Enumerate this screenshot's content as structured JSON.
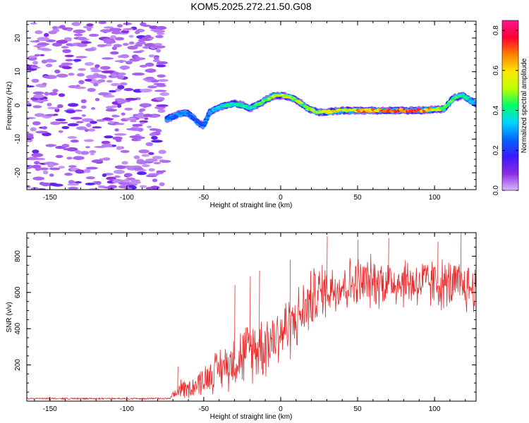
{
  "title": "KOM5.2025.272.21.50.G08",
  "colors": {
    "snr_line": "#e8292a",
    "axis": "#000000",
    "colorbar": [
      "#d9b8ff",
      "#8a2be2",
      "#3a1aff",
      "#0066ff",
      "#00d5ff",
      "#00ff66",
      "#bfff00",
      "#ffe600",
      "#ff7f00",
      "#ff0033",
      "#ff1493"
    ]
  },
  "chart_data": [
    {
      "type": "heatmap",
      "title": "KOM5.2025.272.21.50.G08",
      "xlabel": "Height of straight line (km)",
      "ylabel": "Frequency (Hz)",
      "xlim": [
        -165,
        127
      ],
      "ylim": [
        -25,
        25
      ],
      "x_ticks": [
        -150,
        -100,
        -50,
        0,
        50,
        100
      ],
      "x_tick_labels": [
        "-150",
        "-100",
        "-50",
        "0",
        "50",
        "100"
      ],
      "y_ticks": [
        -20,
        -10,
        0,
        10,
        20
      ],
      "y_tick_labels": [
        "-20",
        "-10",
        "0",
        "10",
        "20"
      ],
      "colorbar": {
        "label": "Normalized spectral amplitude",
        "range": [
          0.0,
          0.85
        ],
        "ticks": [
          0.0,
          0.2,
          0.4,
          0.6,
          0.8
        ],
        "tick_labels": [
          "0.0",
          "0.2",
          "0.4",
          "0.6",
          "0.8"
        ]
      },
      "noise_region_km": [
        -165,
        -75
      ],
      "signal_track": {
        "height_km": [
          -74,
          -62,
          -58,
          -54,
          -50,
          -46,
          -42,
          -36,
          -30,
          -24,
          -20,
          -14,
          -8,
          -4,
          0,
          6,
          12,
          18,
          24,
          30,
          40,
          50,
          60,
          70,
          80,
          90,
          100,
          106,
          112,
          118,
          127
        ],
        "freq_hz": [
          -4,
          -2,
          -3,
          -5,
          -6,
          -2,
          -1,
          0,
          0.5,
          0,
          -1,
          0.5,
          2,
          3,
          3,
          2.5,
          1,
          -1,
          -2,
          -2,
          -1.5,
          -1.5,
          -1.5,
          -1.5,
          -1.5,
          -1.5,
          -1.2,
          -1,
          2,
          3,
          0.5
        ],
        "amplitude": [
          0.25,
          0.3,
          0.25,
          0.2,
          0.25,
          0.3,
          0.35,
          0.4,
          0.4,
          0.45,
          0.4,
          0.45,
          0.5,
          0.55,
          0.6,
          0.55,
          0.5,
          0.5,
          0.55,
          0.6,
          0.6,
          0.65,
          0.7,
          0.7,
          0.75,
          0.7,
          0.6,
          0.5,
          0.45,
          0.4,
          0.35
        ]
      }
    },
    {
      "type": "line",
      "xlabel": "Height of straight line (km)",
      "ylabel": "SNR (v/v)",
      "xlim": [
        -165,
        127
      ],
      "ylim": [
        0,
        930
      ],
      "x_ticks": [
        -150,
        -100,
        -50,
        0,
        50,
        100
      ],
      "x_tick_labels": [
        "-150",
        "-100",
        "-50",
        "0",
        "50",
        "100"
      ],
      "y_ticks": [
        200,
        400,
        600,
        800
      ],
      "y_tick_labels": [
        "200",
        "400",
        "600",
        "800"
      ],
      "series": [
        {
          "name": "SNR",
          "x": [
            -165,
            -140,
            -110,
            -80,
            -72,
            -68,
            -65,
            -62,
            -60,
            -55,
            -50,
            -45,
            -40,
            -35,
            -30,
            -25,
            -20,
            -15,
            -10,
            -5,
            0,
            5,
            10,
            15,
            20,
            25,
            30,
            40,
            50,
            60,
            70,
            80,
            90,
            100,
            110,
            120,
            127
          ],
          "mean": [
            10,
            12,
            11,
            12,
            15,
            40,
            80,
            60,
            70,
            90,
            120,
            150,
            180,
            200,
            230,
            250,
            280,
            300,
            320,
            350,
            380,
            410,
            450,
            500,
            560,
            600,
            620,
            640,
            650,
            660,
            660,
            660,
            650,
            650,
            640,
            630,
            620
          ],
          "amplitude": [
            5,
            5,
            5,
            5,
            8,
            40,
            80,
            60,
            60,
            80,
            100,
            120,
            140,
            160,
            180,
            200,
            200,
            220,
            220,
            220,
            220,
            220,
            200,
            200,
            200,
            200,
            180,
            180,
            180,
            170,
            170,
            170,
            170,
            170,
            170,
            170,
            170
          ],
          "peaks": {
            "x": [
              -67,
              -30,
              -20,
              -14,
              6,
              22,
              30,
              50,
              70,
              102,
              117
            ],
            "y": [
              190,
              640,
              690,
              720,
              780,
              700,
              910,
              890,
              900,
              880,
              930
            ]
          }
        }
      ]
    }
  ]
}
